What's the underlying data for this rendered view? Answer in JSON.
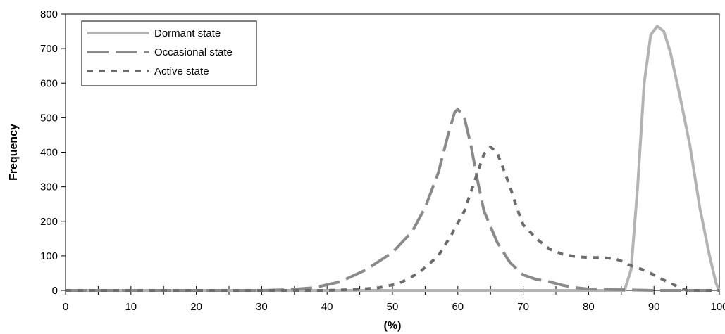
{
  "chart_data": {
    "type": "line",
    "xlabel": "(%)",
    "ylabel": "Frequency",
    "xlim": [
      0,
      100
    ],
    "ylim": [
      0,
      800
    ],
    "x_ticks": [
      "0",
      "10",
      "20",
      "30",
      "40",
      "50",
      "60",
      "70",
      "80",
      "90",
      "100"
    ],
    "y_ticks": [
      "0",
      "100",
      "200",
      "300",
      "400",
      "500",
      "600",
      "700",
      "800"
    ],
    "grid": false,
    "legend_position": "top-left",
    "series": [
      {
        "name": "Dormant state",
        "style": "solid",
        "color": "#b3b3b3",
        "points": [
          [
            0,
            0
          ],
          [
            84,
            0
          ],
          [
            85.5,
            0
          ],
          [
            86.5,
            60
          ],
          [
            87.5,
            300
          ],
          [
            88.5,
            600
          ],
          [
            89.5,
            740
          ],
          [
            90.5,
            765
          ],
          [
            91.5,
            750
          ],
          [
            92.5,
            690
          ],
          [
            94,
            560
          ],
          [
            95.5,
            420
          ],
          [
            97,
            240
          ],
          [
            98.5,
            100
          ],
          [
            99.5,
            20
          ],
          [
            100,
            0
          ]
        ]
      },
      {
        "name": "Occasional state",
        "style": "dashed",
        "color": "#8a8a8a",
        "points": [
          [
            0,
            0
          ],
          [
            30,
            0
          ],
          [
            34,
            2
          ],
          [
            38,
            8
          ],
          [
            42,
            25
          ],
          [
            46,
            60
          ],
          [
            50,
            110
          ],
          [
            53,
            170
          ],
          [
            55,
            240
          ],
          [
            57,
            340
          ],
          [
            58.5,
            450
          ],
          [
            59.5,
            515
          ],
          [
            60,
            525
          ],
          [
            61,
            500
          ],
          [
            62,
            420
          ],
          [
            63,
            320
          ],
          [
            64,
            230
          ],
          [
            66,
            140
          ],
          [
            68,
            80
          ],
          [
            70,
            45
          ],
          [
            72,
            32
          ],
          [
            74,
            25
          ],
          [
            76,
            15
          ],
          [
            78,
            8
          ],
          [
            80,
            4
          ],
          [
            85,
            2
          ],
          [
            90,
            0
          ],
          [
            100,
            0
          ]
        ]
      },
      {
        "name": "Active state",
        "style": "dotted",
        "color": "#6b6b6b",
        "points": [
          [
            0,
            0
          ],
          [
            40,
            0
          ],
          [
            45,
            3
          ],
          [
            48,
            8
          ],
          [
            51,
            20
          ],
          [
            54,
            50
          ],
          [
            57,
            100
          ],
          [
            59,
            160
          ],
          [
            61,
            230
          ],
          [
            63,
            340
          ],
          [
            64,
            395
          ],
          [
            65,
            415
          ],
          [
            66,
            400
          ],
          [
            67,
            350
          ],
          [
            68,
            300
          ],
          [
            69,
            240
          ],
          [
            70,
            190
          ],
          [
            72,
            150
          ],
          [
            74,
            120
          ],
          [
            76,
            105
          ],
          [
            78,
            98
          ],
          [
            80,
            95
          ],
          [
            82,
            95
          ],
          [
            84,
            92
          ],
          [
            85,
            85
          ],
          [
            86,
            75
          ],
          [
            88,
            62
          ],
          [
            90,
            45
          ],
          [
            92,
            25
          ],
          [
            94,
            8
          ],
          [
            95,
            0
          ],
          [
            100,
            0
          ]
        ]
      }
    ]
  }
}
